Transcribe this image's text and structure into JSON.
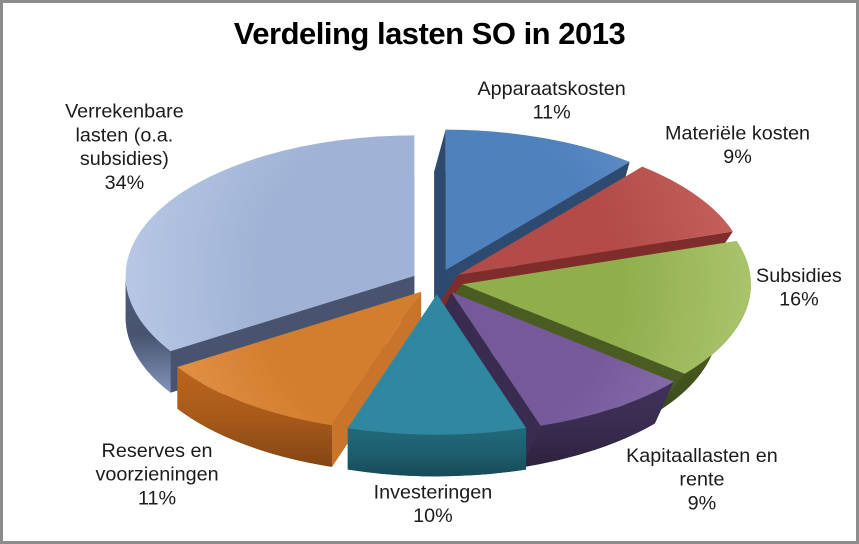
{
  "frame": {
    "background": "#ffffff",
    "border_color": "#8d8d8d"
  },
  "chart_data": {
    "type": "pie",
    "title": "Verdeling lasten SO in 2013",
    "is_3d": true,
    "exploded": true,
    "direction": "clockwise",
    "start_angle_deg": 0,
    "unit": "%",
    "legend_position": "none",
    "label_color": "#1b1b1b",
    "categories": [
      "Apparaatskosten",
      "Materiële kosten",
      "Subsidies",
      "Kapitaallasten en rente",
      "Investeringen",
      "Reserves en voorzieningen",
      "Verrekenbare lasten (o.a. subsidies)"
    ],
    "values": [
      11,
      9,
      16,
      9,
      10,
      11,
      34
    ],
    "slices": [
      {
        "label": "Apparaatskosten",
        "value": 11,
        "label_lines": [
          "Apparaatskosten",
          "11%"
        ],
        "color_top": "#4f81bd",
        "color_top_light": "#6d97cd",
        "color_side": "#2e4a6e"
      },
      {
        "label": "Materiële kosten",
        "value": 9,
        "label_lines": [
          "Materiële kosten",
          "9%"
        ],
        "color_top": "#b34c49",
        "color_top_light": "#c5605c",
        "color_side": "#7e2d2b"
      },
      {
        "label": "Subsidies",
        "value": 16,
        "label_lines": [
          "Subsidies",
          "16%"
        ],
        "color_top": "#90ae4c",
        "color_top_light": "#a9c46b",
        "color_side": "#4a5c22"
      },
      {
        "label": "Kapitaallasten en rente",
        "value": 9,
        "label_lines": [
          "Kapitaallasten en",
          "rente",
          "9%"
        ],
        "color_top": "#75599a",
        "color_top_light": "#8f75b1",
        "color_side": "#3a2c50"
      },
      {
        "label": "Investeringen",
        "value": 10,
        "label_lines": [
          "Investeringen",
          "10%"
        ],
        "color_top": "#2f87a0",
        "color_top_light": "#57abc0",
        "color_side": "#1d5f6f",
        "color_edge_end": "#4da6bb"
      },
      {
        "label": "Reserves en voorzieningen",
        "value": 11,
        "label_lines": [
          "Reserves en",
          "voorzieningen",
          "11%"
        ],
        "color_top": "#d37d2e",
        "color_top_light": "#e6974c",
        "color_side": "#a85a1a",
        "color_edge_start": "#c9742b"
      },
      {
        "label": "Verrekenbare lasten (o.a. subsidies)",
        "value": 34,
        "label_lines": [
          "Verrekenbare",
          "lasten (o.a.",
          "subsidies)",
          "34%"
        ],
        "color_top": "#a0b3d6",
        "color_top_light": "#b7c7e4",
        "color_side": "#47536f",
        "color_bottom": "#8294b9",
        "rim_bottom": "#8294b9"
      }
    ]
  }
}
